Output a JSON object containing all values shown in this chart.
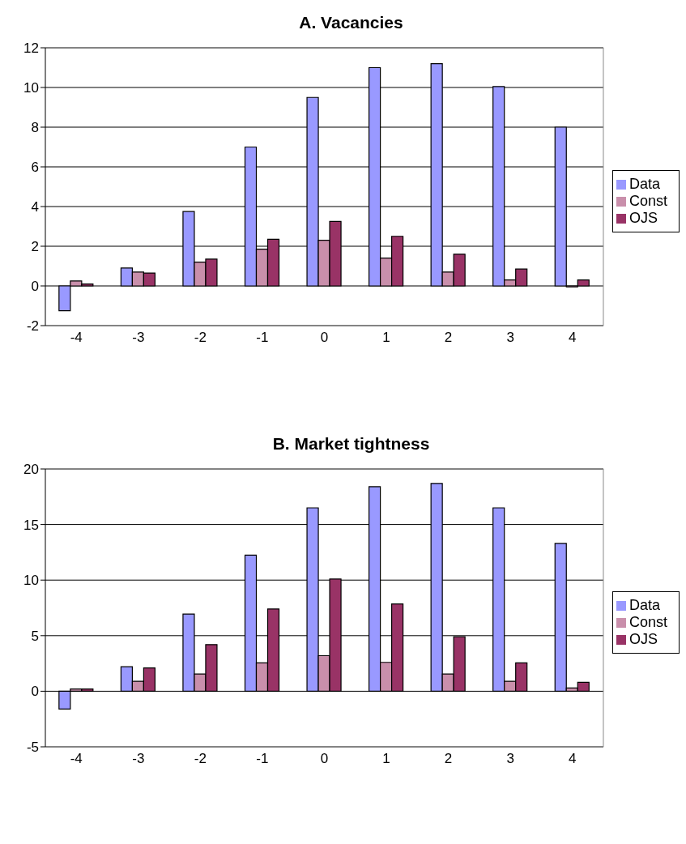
{
  "chart_data": [
    {
      "type": "bar",
      "title": "A. Vacancies",
      "categories": [
        "-4",
        "-3",
        "-2",
        "-1",
        "0",
        "1",
        "2",
        "3",
        "4"
      ],
      "series": [
        {
          "name": "Data",
          "color": "#9999ff",
          "values": [
            -1.25,
            0.9,
            3.75,
            7.0,
            9.5,
            11.0,
            11.2,
            10.05,
            8.0
          ]
        },
        {
          "name": "Const",
          "color": "#c98fab",
          "values": [
            0.25,
            0.7,
            1.2,
            1.85,
            2.3,
            1.4,
            0.7,
            0.3,
            -0.05
          ]
        },
        {
          "name": "OJS",
          "color": "#993366",
          "values": [
            0.1,
            0.65,
            1.35,
            2.35,
            3.25,
            2.5,
            1.6,
            0.85,
            0.3
          ]
        }
      ],
      "ylim": [
        -2,
        12
      ],
      "yticks": [
        -2,
        0,
        2,
        4,
        6,
        8,
        10,
        12
      ],
      "grid": "y",
      "legend": "right"
    },
    {
      "type": "bar",
      "title": "B. Market tightness",
      "categories": [
        "-4",
        "-3",
        "-2",
        "-1",
        "0",
        "1",
        "2",
        "3",
        "4"
      ],
      "series": [
        {
          "name": "Data",
          "color": "#9999ff",
          "values": [
            -1.6,
            2.2,
            6.95,
            12.25,
            16.5,
            18.4,
            18.7,
            16.5,
            13.3
          ]
        },
        {
          "name": "Const",
          "color": "#c98fab",
          "values": [
            0.2,
            0.9,
            1.55,
            2.55,
            3.2,
            2.6,
            1.55,
            0.9,
            0.3
          ]
        },
        {
          "name": "OJS",
          "color": "#993366",
          "values": [
            0.2,
            2.1,
            4.2,
            7.4,
            10.1,
            7.85,
            4.9,
            2.55,
            0.8
          ]
        }
      ],
      "ylim": [
        -5,
        20
      ],
      "yticks": [
        -5,
        0,
        5,
        10,
        15,
        20
      ],
      "grid": "y",
      "legend": "right"
    }
  ]
}
